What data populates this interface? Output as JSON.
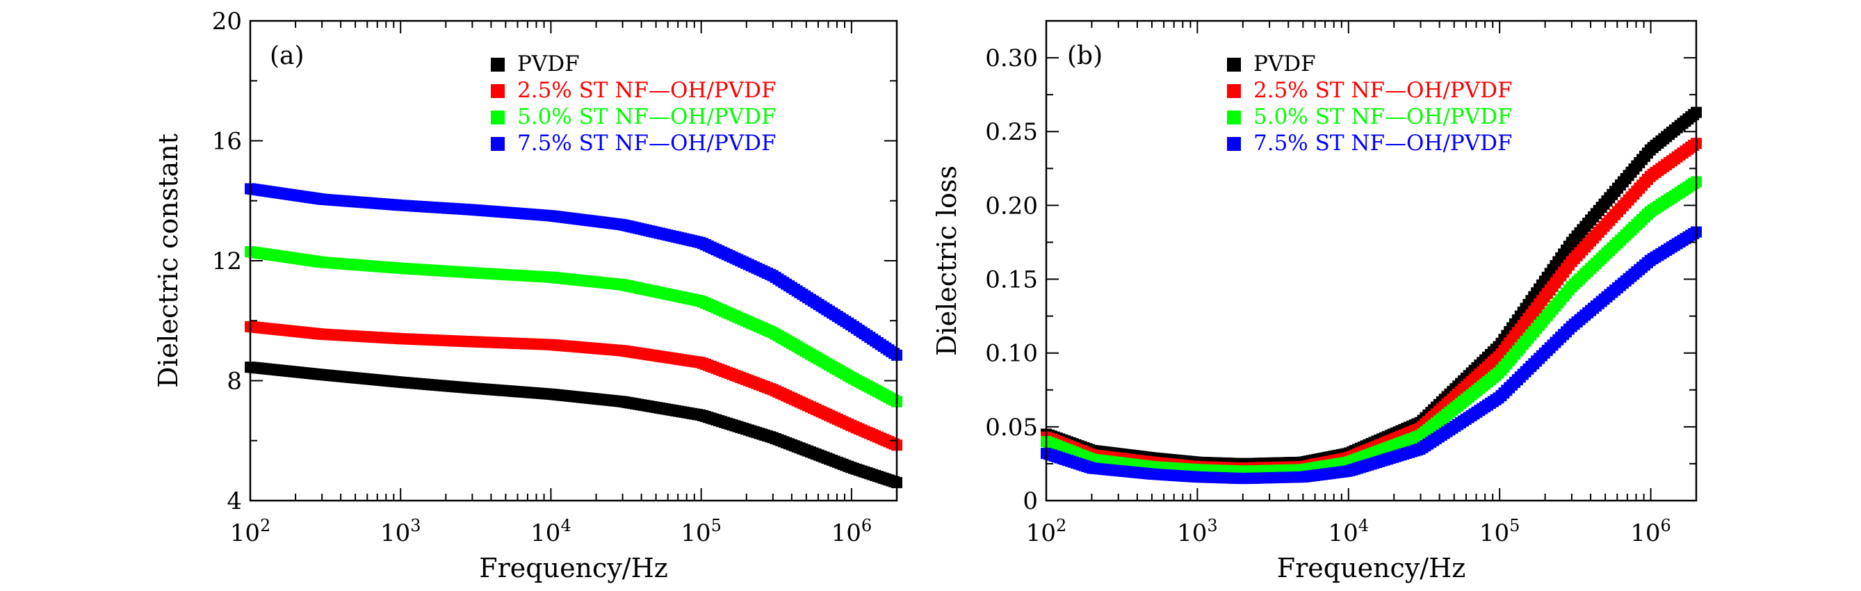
{
  "chart_data": [
    {
      "type": "scatter",
      "panel": "(a)",
      "xlabel": "Frequency/Hz",
      "ylabel": "Dielectric constant",
      "xscale": "log",
      "xlim": [
        100,
        2000000
      ],
      "ylim": [
        4,
        20
      ],
      "xticks": [
        {
          "value": 100,
          "base": "10",
          "exp": "2"
        },
        {
          "value": 1000,
          "base": "10",
          "exp": "3"
        },
        {
          "value": 10000,
          "base": "10",
          "exp": "4"
        },
        {
          "value": 100000,
          "base": "10",
          "exp": "5"
        },
        {
          "value": 1000000,
          "base": "10",
          "exp": "6"
        }
      ],
      "yticks": [
        {
          "value": 4,
          "label": "4"
        },
        {
          "value": 8,
          "label": "8"
        },
        {
          "value": 12,
          "label": "12"
        },
        {
          "value": 16,
          "label": "16"
        },
        {
          "value": 20,
          "label": "20"
        }
      ],
      "legend_position": "top-center",
      "series": [
        {
          "name": "PVDF",
          "color": "#000000",
          "x": [
            100,
            300,
            1000,
            3000,
            10000,
            30000,
            100000,
            300000,
            1000000,
            2000000
          ],
          "y": [
            8.45,
            8.2,
            7.95,
            7.75,
            7.55,
            7.3,
            6.85,
            6.1,
            5.1,
            4.6
          ]
        },
        {
          "name": "2.5% ST NF—OH/PVDF",
          "color": "#ff0000",
          "x": [
            100,
            300,
            1000,
            3000,
            10000,
            30000,
            100000,
            300000,
            1000000,
            2000000
          ],
          "y": [
            9.8,
            9.55,
            9.4,
            9.3,
            9.2,
            9.0,
            8.6,
            7.7,
            6.5,
            5.85
          ]
        },
        {
          "name": "5.0% ST NF—OH/PVDF",
          "color": "#00ff00",
          "x": [
            100,
            300,
            1000,
            3000,
            10000,
            30000,
            100000,
            300000,
            1000000,
            2000000
          ],
          "y": [
            12.3,
            11.95,
            11.75,
            11.6,
            11.45,
            11.2,
            10.65,
            9.6,
            8.1,
            7.3
          ]
        },
        {
          "name": "7.5% ST NF—OH/PVDF",
          "color": "#0000ff",
          "x": [
            100,
            300,
            1000,
            3000,
            10000,
            30000,
            100000,
            300000,
            1000000,
            2000000
          ],
          "y": [
            14.4,
            14.05,
            13.85,
            13.7,
            13.5,
            13.2,
            12.6,
            11.5,
            9.85,
            8.85
          ]
        }
      ]
    },
    {
      "type": "scatter",
      "panel": "(b)",
      "xlabel": "Frequency/Hz",
      "ylabel": "Dielectric loss",
      "xscale": "log",
      "xlim": [
        100,
        2000000
      ],
      "ylim": [
        0,
        0.325
      ],
      "xticks": [
        {
          "value": 100,
          "base": "10",
          "exp": "2"
        },
        {
          "value": 1000,
          "base": "10",
          "exp": "3"
        },
        {
          "value": 10000,
          "base": "10",
          "exp": "4"
        },
        {
          "value": 100000,
          "base": "10",
          "exp": "5"
        },
        {
          "value": 1000000,
          "base": "10",
          "exp": "6"
        }
      ],
      "yticks": [
        {
          "value": 0,
          "label": "0"
        },
        {
          "value": 0.05,
          "label": "0.05"
        },
        {
          "value": 0.1,
          "label": "0.10"
        },
        {
          "value": 0.15,
          "label": "0.15"
        },
        {
          "value": 0.2,
          "label": "0.20"
        },
        {
          "value": 0.25,
          "label": "0.25"
        },
        {
          "value": 0.3,
          "label": "0.30"
        }
      ],
      "legend_position": "top-center",
      "series": [
        {
          "name": "PVDF",
          "color": "#000000",
          "x": [
            100,
            200,
            500,
            1000,
            2000,
            5000,
            10000,
            30000,
            100000,
            300000,
            1000000,
            2000000
          ],
          "y": [
            0.045,
            0.034,
            0.029,
            0.026,
            0.025,
            0.026,
            0.032,
            0.053,
            0.105,
            0.175,
            0.238,
            0.263
          ]
        },
        {
          "name": "2.5% ST NF—OH/PVDF",
          "color": "#ff0000",
          "x": [
            100,
            200,
            500,
            1000,
            2000,
            5000,
            10000,
            30000,
            100000,
            300000,
            1000000,
            2000000
          ],
          "y": [
            0.043,
            0.031,
            0.026,
            0.023,
            0.022,
            0.023,
            0.029,
            0.049,
            0.098,
            0.162,
            0.22,
            0.242
          ]
        },
        {
          "name": "5.0% ST NF—OH/PVDF",
          "color": "#00ff00",
          "x": [
            100,
            200,
            500,
            1000,
            2000,
            5000,
            10000,
            30000,
            100000,
            300000,
            1000000,
            2000000
          ],
          "y": [
            0.04,
            0.028,
            0.023,
            0.021,
            0.02,
            0.021,
            0.026,
            0.044,
            0.087,
            0.145,
            0.196,
            0.216
          ]
        },
        {
          "name": "7.5% ST NF—OH/PVDF",
          "color": "#0000ff",
          "x": [
            100,
            200,
            500,
            1000,
            2000,
            5000,
            10000,
            30000,
            100000,
            300000,
            1000000,
            2000000
          ],
          "y": [
            0.032,
            0.022,
            0.018,
            0.016,
            0.015,
            0.016,
            0.02,
            0.035,
            0.07,
            0.118,
            0.163,
            0.182
          ]
        }
      ]
    }
  ]
}
